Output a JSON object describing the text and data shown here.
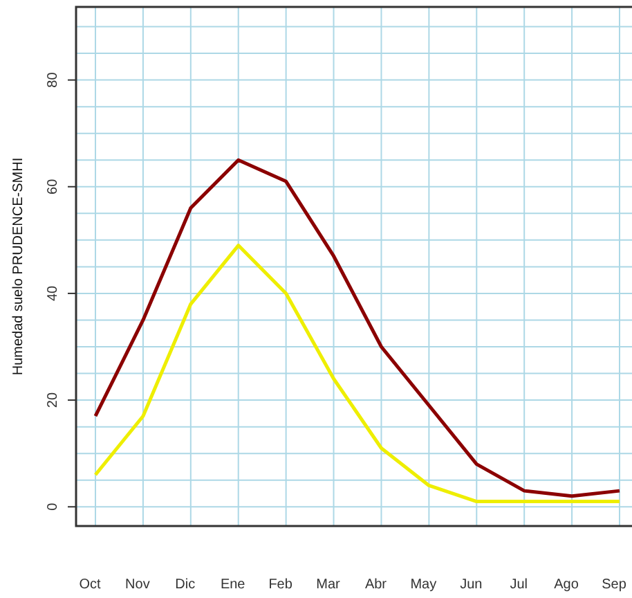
{
  "chart_data": {
    "type": "line",
    "ylabel": "Humedad suelo PRUDENCE-SMHI",
    "categories": [
      "Oct",
      "Nov",
      "Dic",
      "Ene",
      "Feb",
      "Mar",
      "Abr",
      "May",
      "Jun",
      "Jul",
      "Ago",
      "Sep"
    ],
    "series": [
      {
        "color": "#8b0000",
        "values": [
          17,
          35,
          56,
          65,
          61,
          47,
          30,
          19,
          8,
          3,
          2,
          3
        ]
      },
      {
        "color": "#eeee00",
        "values": [
          6,
          17,
          38,
          49,
          40,
          24,
          11,
          4,
          1,
          1,
          1,
          1
        ]
      }
    ],
    "ylim": [
      -3.6,
      93.7
    ],
    "yticks": [
      0,
      {
        "value": 5,
        "label": null
      },
      {
        "value": 10,
        "label": null
      },
      {
        "value": 15,
        "label": null
      },
      20,
      {
        "value": 25,
        "label": null
      },
      {
        "value": 30,
        "label": null
      },
      {
        "value": 35,
        "label": null
      },
      40,
      {
        "value": 45,
        "label": null
      },
      {
        "value": 50,
        "label": null
      },
      {
        "value": 55,
        "label": null
      },
      60,
      {
        "value": 65,
        "label": null
      },
      {
        "value": 70,
        "label": null
      },
      {
        "value": 75,
        "label": null
      },
      80,
      {
        "value": 85,
        "label": null
      },
      {
        "value": 90,
        "label": null
      }
    ],
    "grid": true,
    "marker": "none",
    "line_style": "solid"
  }
}
